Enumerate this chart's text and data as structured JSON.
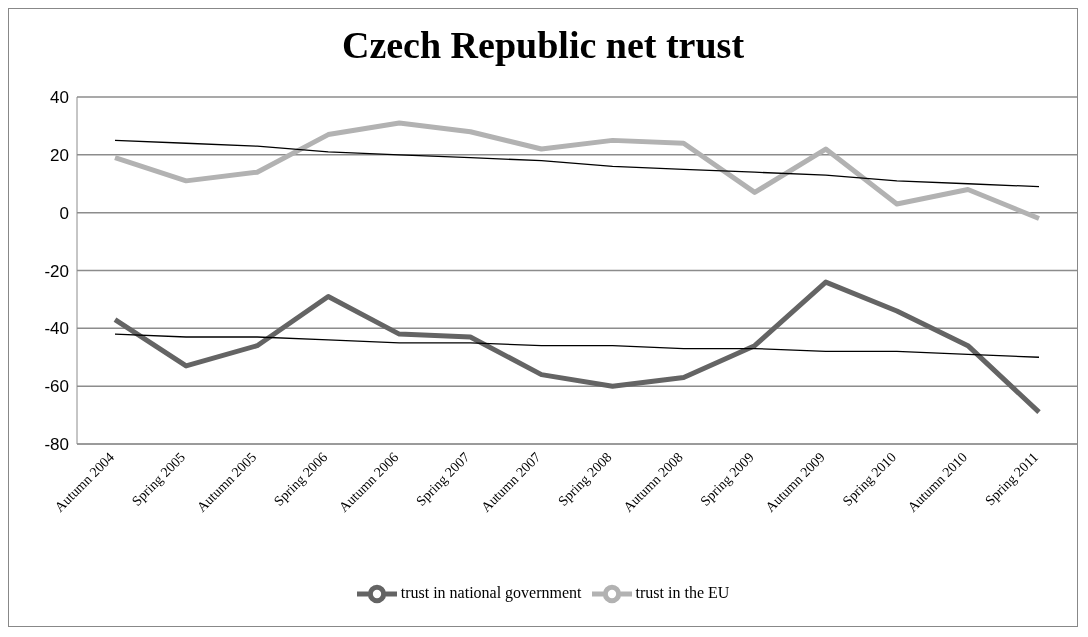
{
  "chart_data": {
    "type": "line",
    "title": "Czech Republic net trust",
    "categories": [
      "Autumn 2004",
      "Spring 2005",
      "Autumn 2005",
      "Spring 2006",
      "Autumn 2006",
      "Spring 2007",
      "Autumn 2007",
      "Spring 2008",
      "Autumn 2008",
      "Spring 2009",
      "Autumn 2009",
      "Spring 2010",
      "Autumn 2010",
      "Spring 2011"
    ],
    "series": [
      {
        "name": "trust in national government",
        "color": "#646464",
        "values": [
          -37,
          -53,
          -46,
          -29,
          -42,
          -43,
          -56,
          -60,
          -57,
          -46,
          -24,
          -34,
          -46,
          -69
        ]
      },
      {
        "name": "trust in the EU",
        "color": "#b2b2b2",
        "values": [
          19,
          11,
          14,
          27,
          31,
          28,
          22,
          25,
          24,
          7,
          22,
          3,
          8,
          -2
        ]
      },
      {
        "color": "#000000",
        "values": [
          25,
          24,
          23,
          21,
          20,
          19,
          18,
          16,
          15,
          14,
          13,
          11,
          10,
          9
        ]
      },
      {
        "color": "#000000",
        "values": [
          -42,
          -43,
          -43,
          -44,
          -45,
          -45,
          -46,
          -46,
          -47,
          -47,
          -48,
          -48,
          -49,
          -50
        ]
      }
    ],
    "ylim": [
      -80,
      40
    ],
    "yticks": [
      -80,
      -60,
      -40,
      -20,
      0,
      20,
      40
    ],
    "grid": "y",
    "legend": "bottom",
    "marker": "none",
    "line_style": "solid"
  }
}
